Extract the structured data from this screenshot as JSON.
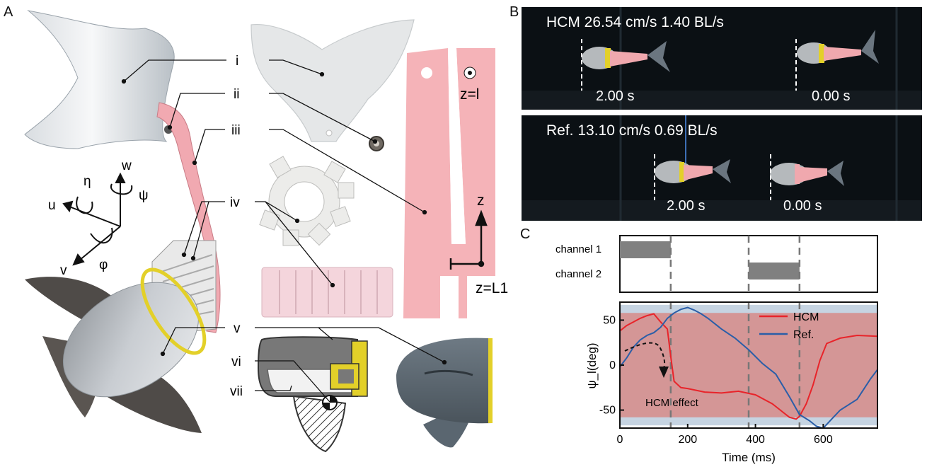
{
  "panels": {
    "a": "A",
    "b": "B",
    "c": "C"
  },
  "panel_a": {
    "labels": {
      "i": "i",
      "ii": "ii",
      "iii": "iii",
      "iv": "iv",
      "v": "v",
      "vi": "vi",
      "vii": "vii"
    },
    "axes": {
      "w": "w",
      "eta": "η",
      "psi": "ψ",
      "u": "u",
      "v": "v",
      "phi": "φ",
      "z": "z"
    },
    "z_top": "z=l",
    "z_l1": "z=L1"
  },
  "panel_b": {
    "top": {
      "caption": "HCM  26.54 cm/s 1.40 BL/s",
      "time_left": "2.00 s",
      "time_right": "0.00 s"
    },
    "bottom": {
      "caption": "Ref. 13.10 cm/s  0.69 BL/s",
      "time_left": "2.00 s",
      "time_right": "0.00 s"
    }
  },
  "colors": {
    "hcm": "#e8242a",
    "ref": "#2a5ea8",
    "band_red": "#d49696",
    "band_blue": "#c6d4e2",
    "fin_pink": "#f0a8ae",
    "body_gray": "#5c5c5c",
    "yellow": "#e3d029",
    "channel_bar": "#808080"
  },
  "chart_data": {
    "type": "line",
    "xlabel": "Time (ms)",
    "ylabel": "ψ_l(deg)",
    "xlim": [
      0,
      760
    ],
    "ylim": [
      -70,
      70
    ],
    "xticks": [
      "0",
      "200",
      "400",
      "600"
    ],
    "yticks": [
      "50",
      "0",
      "-50"
    ],
    "legend_position": "top-right",
    "dashed_lines_x": [
      150,
      380,
      530
    ],
    "channels": [
      {
        "name": "channel 1",
        "on": [
          [
            0,
            150
          ]
        ]
      },
      {
        "name": "channel 2",
        "on": [
          [
            380,
            530
          ]
        ]
      }
    ],
    "annotation": "HCM effect",
    "bands": {
      "red": [
        -58,
        58
      ],
      "blue_outer": [
        -67,
        67
      ]
    },
    "series": [
      {
        "name": "HCM",
        "x": [
          0,
          20,
          40,
          60,
          80,
          100,
          120,
          140,
          150,
          160,
          180,
          200,
          250,
          300,
          350,
          400,
          450,
          480,
          500,
          520,
          530,
          550,
          570,
          590,
          610,
          650,
          700,
          760
        ],
        "y": [
          38,
          44,
          48,
          52,
          55,
          57,
          48,
          40,
          10,
          -18,
          -25,
          -26,
          -30,
          -31,
          -29,
          -33,
          -43,
          -52,
          -58,
          -60,
          -57,
          -43,
          -22,
          5,
          24,
          30,
          33,
          32
        ]
      },
      {
        "name": "Ref.",
        "x": [
          0,
          20,
          40,
          60,
          80,
          100,
          120,
          140,
          160,
          180,
          200,
          220,
          240,
          260,
          300,
          340,
          380,
          420,
          460,
          500,
          530,
          560,
          580,
          600,
          620,
          650,
          700,
          740,
          760
        ],
        "y": [
          -2,
          8,
          20,
          28,
          33,
          36,
          42,
          52,
          58,
          62,
          64,
          61,
          57,
          52,
          40,
          30,
          17,
          2,
          -10,
          -35,
          -55,
          -62,
          -68,
          -70,
          -62,
          -50,
          -38,
          -15,
          -5
        ]
      }
    ]
  }
}
